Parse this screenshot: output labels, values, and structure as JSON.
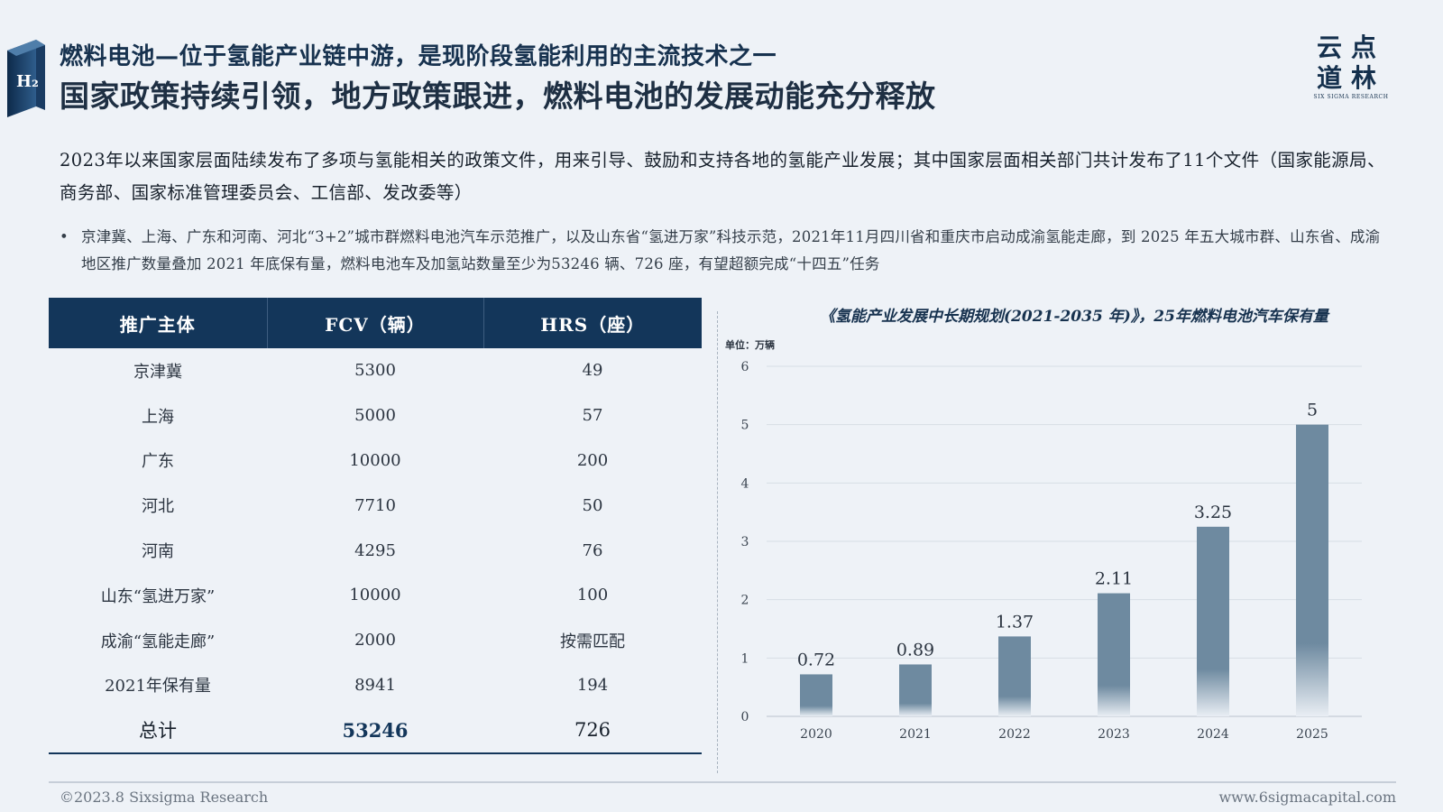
{
  "badge": {
    "text": "H₂"
  },
  "header": {
    "title_line1": "燃料电池—位于氢能产业链中游，是现阶段氢能利用的主流技术之一",
    "title_line2": "国家政策持续引领，地方政策跟进，燃料电池的发展动能充分释放"
  },
  "logo": {
    "line1": "云点",
    "line2": "道林",
    "sub": "SIX SIGMA RESEARCH"
  },
  "intro": "2023年以来国家层面陆续发布了多项与氢能相关的政策文件，用来引导、鼓励和支持各地的氢能产业发展；其中国家层面相关部门共计发布了11个文件（国家能源局、商务部、国家标准管理委员会、工信部、发改委等）",
  "bullet": {
    "marker": "•",
    "text": "京津冀、上海、广东和河南、河北“3+2”城市群燃料电池汽车示范推广，以及山东省“氢进万家”科技示范，2021年11月四川省和重庆市启动成渝氢能走廊，到 2025 年五大城市群、山东省、成渝地区推广数量叠加 2021 年底保有量，燃料电池车及加氢站数量至少为53246 辆、726 座，有望超额完成“十四五”任务"
  },
  "table": {
    "headers": [
      "推广主体",
      "FCV（辆）",
      "HRS（座）"
    ],
    "rows": [
      [
        "京津冀",
        "5300",
        "49"
      ],
      [
        "上海",
        "5000",
        "57"
      ],
      [
        "广东",
        "10000",
        "200"
      ],
      [
        "河北",
        "7710",
        "50"
      ],
      [
        "河南",
        "4295",
        "76"
      ],
      [
        "山东“氢进万家”",
        "10000",
        "100"
      ],
      [
        "成渝“氢能走廊”",
        "2000",
        "按需匹配"
      ],
      [
        "2021年保有量",
        "8941",
        "194"
      ]
    ],
    "total": [
      "总计",
      "53246",
      "726"
    ]
  },
  "chart_data": {
    "type": "bar",
    "title": "《氢能产业发展中长期规划(2021-2035 年)》，25年燃料电池汽车保有量",
    "unit_label": "单位：万辆",
    "categories": [
      "2020",
      "2021",
      "2022",
      "2023",
      "2024",
      "2025"
    ],
    "values": [
      0.72,
      0.89,
      1.37,
      2.11,
      3.25,
      5
    ],
    "value_labels": [
      "0.72",
      "0.89",
      "1.37",
      "2.11",
      "3.25",
      "5"
    ],
    "ylim": [
      0,
      6
    ],
    "yticks": [
      0,
      1,
      2,
      3,
      4,
      5,
      6
    ],
    "grid": true,
    "bar_color": "#6e8aa0"
  },
  "footer": {
    "left": "©2023.8 Sixsigma Research",
    "right": "www.6sigmacapital.com"
  }
}
